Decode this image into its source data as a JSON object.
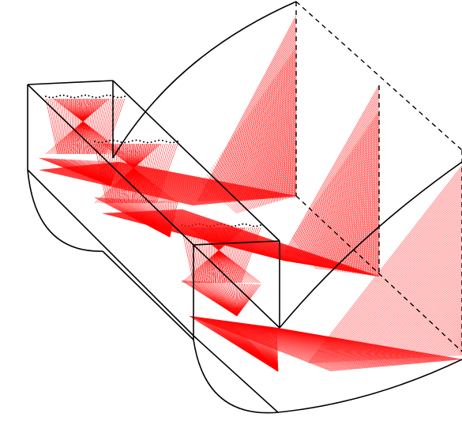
{
  "diagram": {
    "title": "",
    "colors": {
      "background": "#ffffff",
      "outline": "#000000",
      "rays": "#ff0000"
    },
    "components": [
      {
        "name": "small-trough-reflector",
        "kind": "parabolic-trough"
      },
      {
        "name": "large-trough-reflector",
        "kind": "parabolic-trough"
      },
      {
        "name": "stepped-receiver-cells",
        "count": 3
      },
      {
        "name": "back-corner-cube",
        "kind": "wireframe-box"
      }
    ],
    "ray_bundles": [
      {
        "name": "ray-fan-1"
      },
      {
        "name": "ray-fan-2"
      },
      {
        "name": "ray-fan-3"
      },
      {
        "name": "ray-fan-4"
      }
    ],
    "hatched_panels": [
      {
        "name": "cell-panel-1"
      },
      {
        "name": "cell-panel-2"
      },
      {
        "name": "cell-panel-3"
      },
      {
        "name": "focus-fan-upper"
      },
      {
        "name": "focus-fan-lower"
      }
    ]
  }
}
